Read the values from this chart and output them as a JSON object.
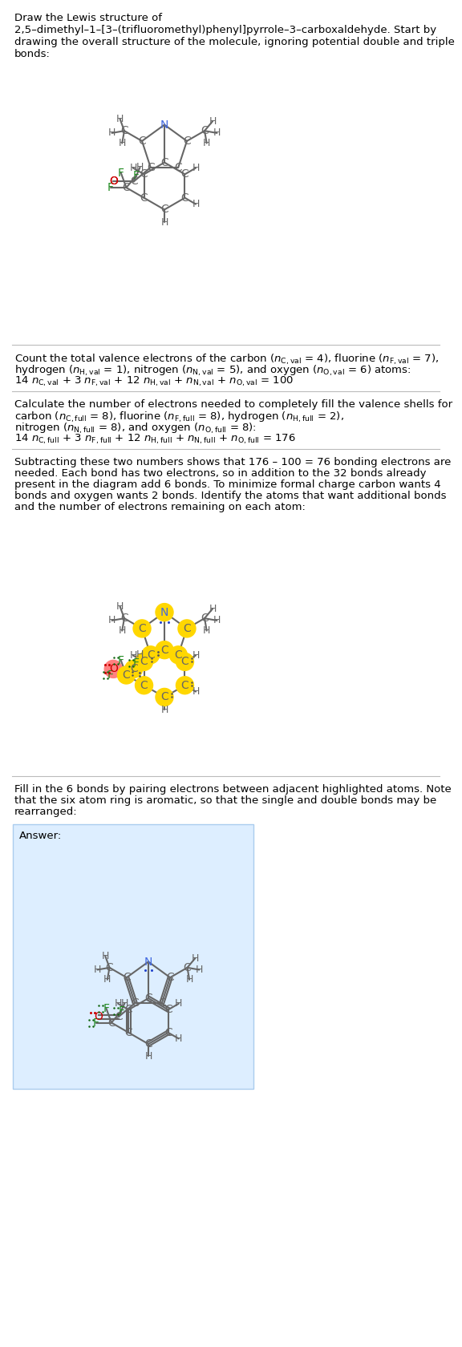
{
  "bg": "#ffffff",
  "C_color": "#666666",
  "N_color": "#4169e1",
  "O_color": "#cc0000",
  "F_color": "#228b22",
  "H_color": "#666666",
  "hl_yellow": "#ffd700",
  "hl_orange": "#ff8080",
  "answer_bg": "#ddeeff",
  "answer_border": "#aaccee",
  "title": "Draw the Lewis structure of",
  "title2": "2,5–dimethyl–1–[3–(trifluoromethyl)phenyl]pyrrole–3–carboxaldehyde. Start by",
  "title3": "drawing the overall structure of the molecule, ignoring potential double and triple",
  "title4": "bonds:",
  "sec2l1": "Count the total valence electrons of the carbon (",
  "sec2l1b": "n",
  "sec2l1c": "C,val",
  "sec2l1d": " = 4), fluorine (",
  "sec2l1e": "n",
  "sec2l1f": "F,val",
  "sec2l1g": " = 7),",
  "sec3l1": "Calculate the number of electrons needed to completely fill the valence shells for",
  "sec4l1": "Subtracting these two numbers shows that 176 – 100 = 76 bonding electrons are",
  "sec4l2": "needed. Each bond has two electrons, so in addition to the 32 bonds already",
  "sec4l3": "present in the diagram add 6 bonds. To minimize formal charge carbon wants 4",
  "sec4l4": "bonds and oxygen wants 2 bonds. Identify the atoms that want additional bonds",
  "sec4l5": "and the number of electrons remaining on each atom:",
  "sec5l1": "Fill in the 6 bonds by pairing electrons between adjacent highlighted atoms. Note",
  "sec5l2": "that the six atom ring is aromatic, so that the single and double bonds may be",
  "sec5l3": "rearranged:"
}
